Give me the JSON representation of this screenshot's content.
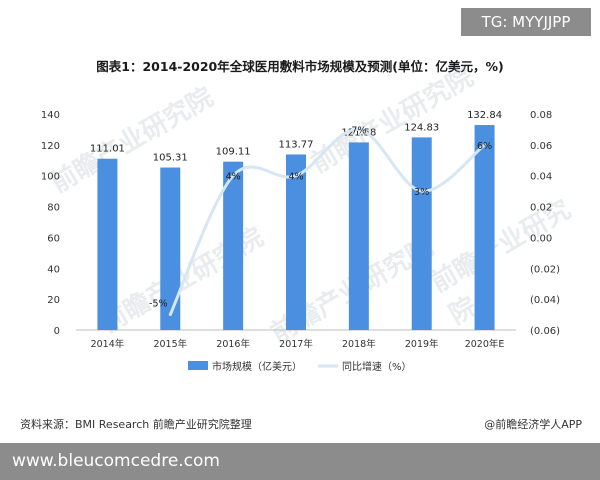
{
  "badge": "TG: MYYJJPP",
  "source_text": "资料来源：BMI Research 前瞻产业研究院整理",
  "credit_text": "@前瞻经济学人APP",
  "footer_url": "www.bleucomcedre.com",
  "watermark_text": "前瞻产业研究院",
  "chart_data": {
    "type": "bar",
    "title": "图表1：2014-2020年全球医用敷料市场规模及预测(单位：亿美元，%)",
    "categories": [
      "2014年",
      "2015年",
      "2016年",
      "2017年",
      "2018年",
      "2019年",
      "2020年E"
    ],
    "series": [
      {
        "name": "市场规模（亿美元）",
        "type": "bar",
        "values": [
          111.01,
          105.31,
          109.11,
          113.77,
          121.58,
          124.83,
          132.84
        ],
        "labels": [
          "111.01",
          "105.31",
          "109.11",
          "113.77",
          "121.58",
          "124.83",
          "132.84"
        ],
        "color": "#4a8fe0"
      },
      {
        "name": "同比增速（%）",
        "type": "line",
        "values": [
          null,
          -0.05,
          0.04,
          0.04,
          0.07,
          0.03,
          0.06
        ],
        "labels": [
          "",
          "-5%",
          "4%",
          "4%",
          "7%",
          "3%",
          "6%"
        ],
        "color": "#d6e6f3"
      }
    ],
    "y_left": {
      "min": 0,
      "max": 140,
      "ticks": [
        "0",
        "20",
        "40",
        "60",
        "80",
        "100",
        "120",
        "140"
      ]
    },
    "y_right": {
      "min": -0.06,
      "max": 0.08,
      "ticks": [
        "(0.06)",
        "(0.04)",
        "(0.02)",
        "0.00",
        "0.02",
        "0.04",
        "0.06",
        "0.08"
      ]
    },
    "legend_position": "bottom",
    "grid": false
  }
}
